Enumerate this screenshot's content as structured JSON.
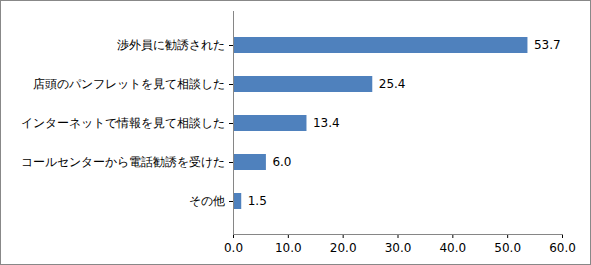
{
  "chart_data": {
    "type": "bar",
    "orientation": "horizontal",
    "categories": [
      "渉外員に勧誘された",
      "店頭のパンフレットを見て相談した",
      "インターネットで情報を見て相談した",
      "コールセンターから電話勧誘を受けた",
      "その他"
    ],
    "values": [
      53.7,
      25.4,
      13.4,
      6.0,
      1.5
    ],
    "value_labels": [
      "53.7",
      "25.4",
      "13.4",
      "6.0",
      "1.5"
    ],
    "color": "#4f81bd",
    "xlim": [
      0,
      60
    ],
    "xticks": [
      {
        "value": 0,
        "label": "0.0"
      },
      {
        "value": 10,
        "label": "10.0"
      },
      {
        "value": 20,
        "label": "20.0"
      },
      {
        "value": 30,
        "label": "30.0"
      },
      {
        "value": 40,
        "label": "40.0"
      },
      {
        "value": 50,
        "label": "50.0"
      },
      {
        "value": 60,
        "label": "60.0"
      }
    ],
    "grid": false,
    "data_labels": true
  }
}
